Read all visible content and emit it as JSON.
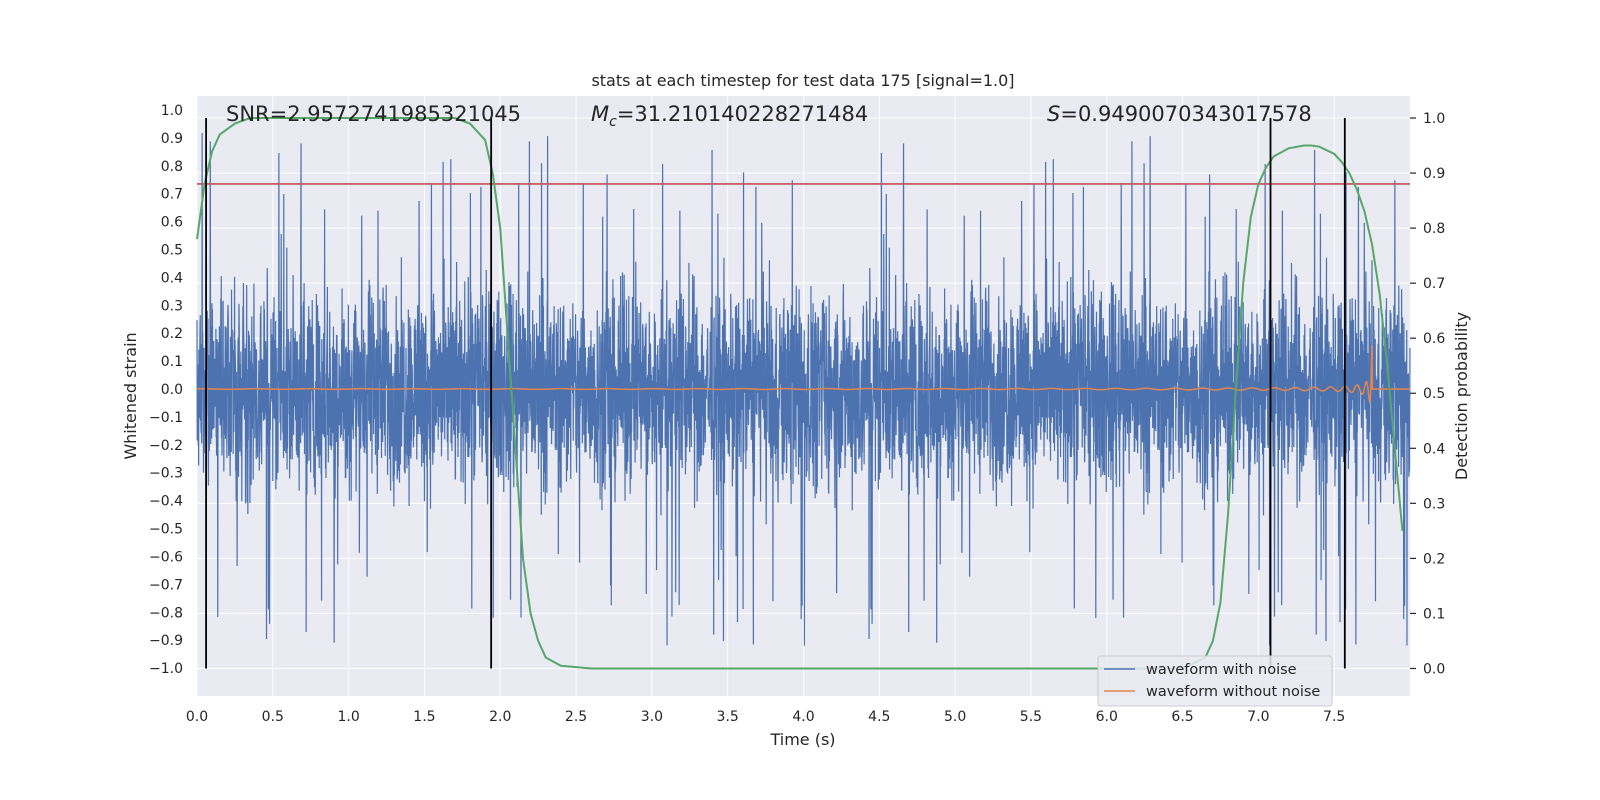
{
  "chart_data": {
    "type": "line",
    "title": "stats at each timestep for test data 175 [signal=1.0]",
    "xlabel": "Time (s)",
    "ylabel": "Whitened strain",
    "y2label": "Detection probability",
    "xlim": [
      0,
      8
    ],
    "ylim": [
      -1.1,
      1.05
    ],
    "y2lim": [
      -0.05,
      1.04
    ],
    "x_ticks": [
      0.0,
      0.5,
      1.0,
      1.5,
      2.0,
      2.5,
      3.0,
      3.5,
      4.0,
      4.5,
      5.0,
      5.5,
      6.0,
      6.5,
      7.0,
      7.5
    ],
    "x_tick_labels": [
      "0.0",
      "0.5",
      "1.0",
      "1.5",
      "2.0",
      "2.5",
      "3.0",
      "3.5",
      "4.0",
      "4.5",
      "5.0",
      "5.5",
      "6.0",
      "6.5",
      "7.0",
      "7.5"
    ],
    "y_ticks": [
      1.0,
      0.9,
      0.8,
      0.7,
      0.6,
      0.5,
      0.4,
      0.3,
      0.2,
      0.1,
      0.0,
      -0.1,
      -0.2,
      -0.3,
      -0.4,
      -0.5,
      -0.6,
      -0.7,
      -0.8,
      -0.9,
      -1.0
    ],
    "y_tick_labels": [
      "1.0",
      "0.9",
      "0.8",
      "0.7",
      "0.6",
      "0.5",
      "0.4",
      "0.3",
      "0.2",
      "0.1",
      "0.0",
      "−0.1",
      "−0.2",
      "−0.3",
      "−0.4",
      "−0.5",
      "−0.6",
      "−0.7",
      "−0.8",
      "−0.9",
      "−1.0"
    ],
    "y2_ticks": [
      1.0,
      0.9,
      0.8,
      0.7,
      0.6,
      0.5,
      0.4,
      0.3,
      0.2,
      0.1,
      0.0
    ],
    "y2_tick_labels": [
      "1.0",
      "0.9",
      "0.8",
      "0.7",
      "0.6",
      "0.5",
      "0.4",
      "0.3",
      "0.2",
      "0.1",
      "0.0"
    ],
    "grid": true,
    "legend_position": "bottom-right",
    "annotations": {
      "snr": "SNR=2.9572741985321045",
      "mc_symbol": "M",
      "mc_subscript": "c",
      "mc_value": "=31.210140228271484",
      "s_symbol": "S",
      "s_value": "=0.9490070343017578"
    },
    "series": [
      {
        "name": "waveform with noise",
        "color": "#4c72b0",
        "kind": "noise",
        "typical_amplitude": 0.35,
        "peak_amplitude": 0.92
      },
      {
        "name": "waveform without noise",
        "color": "#dd8452",
        "kind": "chirp",
        "merger_time": 7.75,
        "peak_amplitude": 0.25
      },
      {
        "color": "#55a868",
        "axis": "right",
        "kind": "probability",
        "x": [
          0.0,
          0.05,
          0.1,
          0.15,
          0.25,
          0.35,
          0.5,
          0.75,
          1.0,
          1.25,
          1.5,
          1.7,
          1.8,
          1.9,
          1.95,
          2.0,
          2.05,
          2.1,
          2.15,
          2.2,
          2.25,
          2.3,
          2.4,
          2.6,
          3.0,
          4.0,
          5.0,
          6.0,
          6.5,
          6.65,
          6.7,
          6.75,
          6.8,
          6.85,
          6.9,
          6.95,
          7.0,
          7.05,
          7.1,
          7.2,
          7.3,
          7.35,
          7.4,
          7.5,
          7.55,
          7.6,
          7.65,
          7.7,
          7.75,
          7.8,
          7.85,
          7.9,
          7.95
        ],
        "y": [
          0.78,
          0.88,
          0.94,
          0.97,
          0.99,
          1.0,
          1.0,
          1.0,
          1.0,
          1.0,
          1.0,
          1.0,
          0.99,
          0.96,
          0.9,
          0.8,
          0.6,
          0.4,
          0.2,
          0.1,
          0.05,
          0.02,
          0.005,
          0.0,
          0.0,
          0.0,
          0.0,
          0.0,
          0.0,
          0.02,
          0.05,
          0.12,
          0.28,
          0.5,
          0.7,
          0.82,
          0.88,
          0.91,
          0.93,
          0.945,
          0.95,
          0.95,
          0.948,
          0.935,
          0.92,
          0.9,
          0.87,
          0.83,
          0.77,
          0.68,
          0.55,
          0.4,
          0.25
        ]
      },
      {
        "color": "#c44e52",
        "axis": "left",
        "kind": "threshold",
        "y": 0.735
      }
    ],
    "vertical_markers": [
      0.06,
      1.94,
      7.08,
      7.57
    ]
  }
}
